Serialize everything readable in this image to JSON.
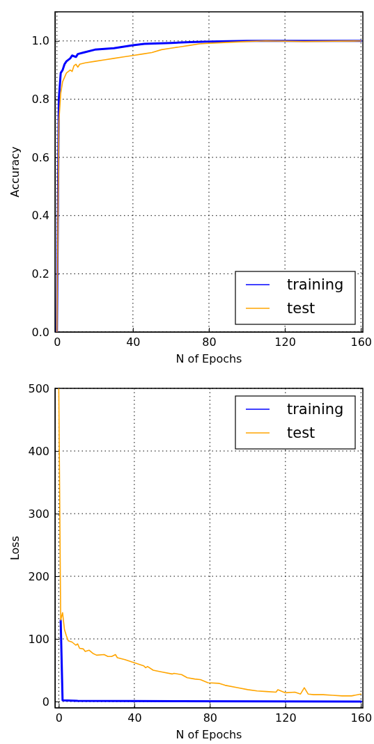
{
  "chart_data": [
    {
      "type": "line",
      "xlabel": "N of Epochs",
      "ylabel": "Accuracy",
      "xlim": [
        -1,
        161
      ],
      "ylim": [
        0,
        1.1
      ],
      "xticks": [
        0,
        40,
        80,
        120,
        160
      ],
      "yticks": [
        {
          "value": 0,
          "label": "0.0"
        },
        0.2,
        0.4,
        0.6,
        0.8,
        {
          "value": 1,
          "label": "1.0"
        }
      ],
      "grid": true,
      "legend": "bottom right",
      "series": [
        {
          "name": "training",
          "color": "#0000ff",
          "x": [
            0,
            1,
            2,
            3,
            4,
            5,
            7,
            8,
            10,
            11,
            14,
            20,
            30,
            40,
            46,
            60,
            70,
            80,
            100,
            160
          ],
          "values": [
            0,
            0.8,
            0.89,
            0.9,
            0.92,
            0.93,
            0.94,
            0.95,
            0.945,
            0.955,
            0.96,
            0.97,
            0.975,
            0.985,
            0.99,
            0.993,
            0.996,
            0.998,
            1.0,
            1.0
          ]
        },
        {
          "name": "test",
          "color": "#ffa500",
          "x": [
            0,
            1,
            2,
            3,
            5,
            7,
            8,
            9,
            10,
            11,
            12,
            15,
            20,
            25,
            30,
            35,
            40,
            45,
            50,
            55,
            60,
            65,
            70,
            75,
            80,
            90,
            100,
            110,
            130,
            160
          ],
          "values": [
            0,
            0.72,
            0.82,
            0.86,
            0.89,
            0.9,
            0.895,
            0.915,
            0.92,
            0.91,
            0.92,
            0.925,
            0.93,
            0.935,
            0.94,
            0.945,
            0.95,
            0.955,
            0.96,
            0.97,
            0.975,
            0.98,
            0.985,
            0.99,
            0.992,
            0.995,
            0.998,
            1.0,
            0.998,
            1.0
          ]
        }
      ]
    },
    {
      "type": "line",
      "xlabel": "N of Epochs",
      "ylabel": "Loss",
      "xlim": [
        -2,
        161
      ],
      "ylim": [
        -10,
        500
      ],
      "xticks": [
        0,
        40,
        80,
        120,
        160
      ],
      "yticks": [
        0,
        100,
        200,
        300,
        400,
        500
      ],
      "grid": true,
      "legend": "top right",
      "series": [
        {
          "name": "training",
          "color": "#0000ff",
          "x": [
            1,
            2,
            10,
            160
          ],
          "values": [
            130,
            2,
            1,
            0
          ]
        },
        {
          "name": "test",
          "color": "#ffa500",
          "x": [
            0,
            1,
            2,
            3,
            4,
            5,
            7,
            9,
            10,
            11,
            13,
            14,
            16,
            18,
            20,
            24,
            26,
            28,
            30,
            31,
            35,
            40,
            45,
            46,
            47,
            50,
            55,
            60,
            61,
            65,
            68,
            72,
            75,
            79,
            85,
            88,
            95,
            100,
            105,
            110,
            115,
            116,
            120,
            125,
            128,
            130,
            132,
            135,
            140,
            145,
            150,
            155,
            160
          ],
          "values": [
            500,
            130,
            142,
            115,
            105,
            97,
            95,
            90,
            92,
            85,
            84,
            80,
            82,
            77,
            74,
            75,
            72,
            72,
            75,
            70,
            67,
            62,
            57,
            54,
            56,
            50,
            47,
            44,
            45,
            43,
            38,
            36,
            35,
            30,
            29,
            26,
            22,
            19,
            17,
            16,
            15,
            19,
            14,
            15,
            12,
            22,
            12,
            11,
            11,
            10,
            9,
            9,
            12
          ]
        }
      ]
    }
  ]
}
